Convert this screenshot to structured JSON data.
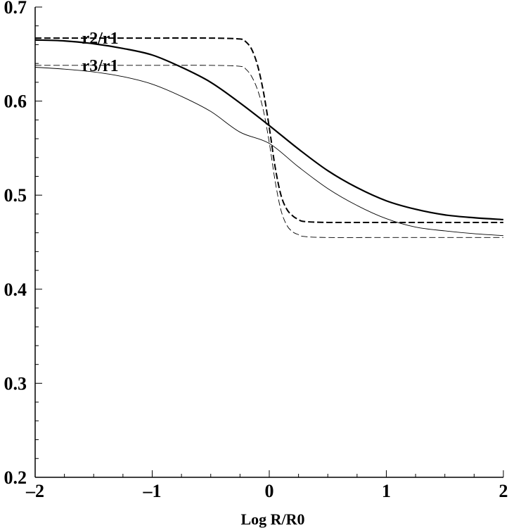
{
  "chart_data": {
    "type": "line",
    "title": "",
    "xlabel": "Log R/R0",
    "ylabel": "",
    "xlim": [
      -2,
      2
    ],
    "ylim": [
      0.2,
      0.7
    ],
    "x_ticks": [
      -2,
      -1,
      0,
      1,
      2
    ],
    "x_tick_labels": [
      "–2",
      "–1",
      "0",
      "1",
      "2"
    ],
    "y_ticks": [
      0.2,
      0.3,
      0.4,
      0.5,
      0.6,
      0.7
    ],
    "y_tick_labels": [
      "0.2",
      "0.3",
      "0.4",
      "0.5",
      "0.6",
      "0.7"
    ],
    "grid": false,
    "annotations": [
      {
        "text": "r2/r1",
        "x": -1.6,
        "y": 0.667
      },
      {
        "text": "r3/r1",
        "x": -1.6,
        "y": 0.638
      }
    ],
    "series": [
      {
        "style": "solid-thick",
        "x": [
          -2.0,
          -1.75,
          -1.5,
          -1.25,
          -1.0,
          -0.75,
          -0.5,
          -0.25,
          0.0,
          0.25,
          0.5,
          0.75,
          1.0,
          1.25,
          1.5,
          1.75,
          2.0
        ],
        "y": [
          0.665,
          0.664,
          0.661,
          0.656,
          0.649,
          0.636,
          0.62,
          0.598,
          0.574,
          0.549,
          0.526,
          0.508,
          0.494,
          0.485,
          0.479,
          0.476,
          0.474
        ]
      },
      {
        "style": "solid-thin",
        "x": [
          -2.0,
          -1.75,
          -1.5,
          -1.25,
          -1.0,
          -0.75,
          -0.5,
          -0.25,
          0.0,
          0.25,
          0.5,
          0.75,
          1.0,
          1.25,
          1.5,
          1.75,
          2.0
        ],
        "y": [
          0.636,
          0.634,
          0.631,
          0.626,
          0.618,
          0.605,
          0.589,
          0.567,
          0.555,
          0.53,
          0.507,
          0.489,
          0.475,
          0.466,
          0.462,
          0.459,
          0.457
        ]
      },
      {
        "style": "dashed-thick",
        "x": [
          -2.0,
          -1.5,
          -1.0,
          -0.5,
          -0.25,
          -0.2,
          -0.15,
          -0.1,
          -0.05,
          0.0,
          0.05,
          0.1,
          0.15,
          0.2,
          0.25,
          0.3,
          0.5,
          1.0,
          1.5,
          2.0
        ],
        "y": [
          0.667,
          0.667,
          0.667,
          0.667,
          0.666,
          0.663,
          0.655,
          0.638,
          0.61,
          0.572,
          0.53,
          0.5,
          0.485,
          0.478,
          0.474,
          0.472,
          0.471,
          0.471,
          0.471,
          0.471
        ]
      },
      {
        "style": "dashed-thin",
        "x": [
          -2.0,
          -1.5,
          -1.0,
          -0.5,
          -0.25,
          -0.2,
          -0.15,
          -0.1,
          -0.05,
          0.0,
          0.05,
          0.1,
          0.15,
          0.2,
          0.25,
          0.3,
          0.5,
          1.0,
          1.5,
          2.0
        ],
        "y": [
          0.638,
          0.638,
          0.638,
          0.638,
          0.637,
          0.634,
          0.626,
          0.612,
          0.59,
          0.556,
          0.515,
          0.484,
          0.468,
          0.461,
          0.458,
          0.456,
          0.455,
          0.455,
          0.455,
          0.455
        ]
      }
    ]
  }
}
